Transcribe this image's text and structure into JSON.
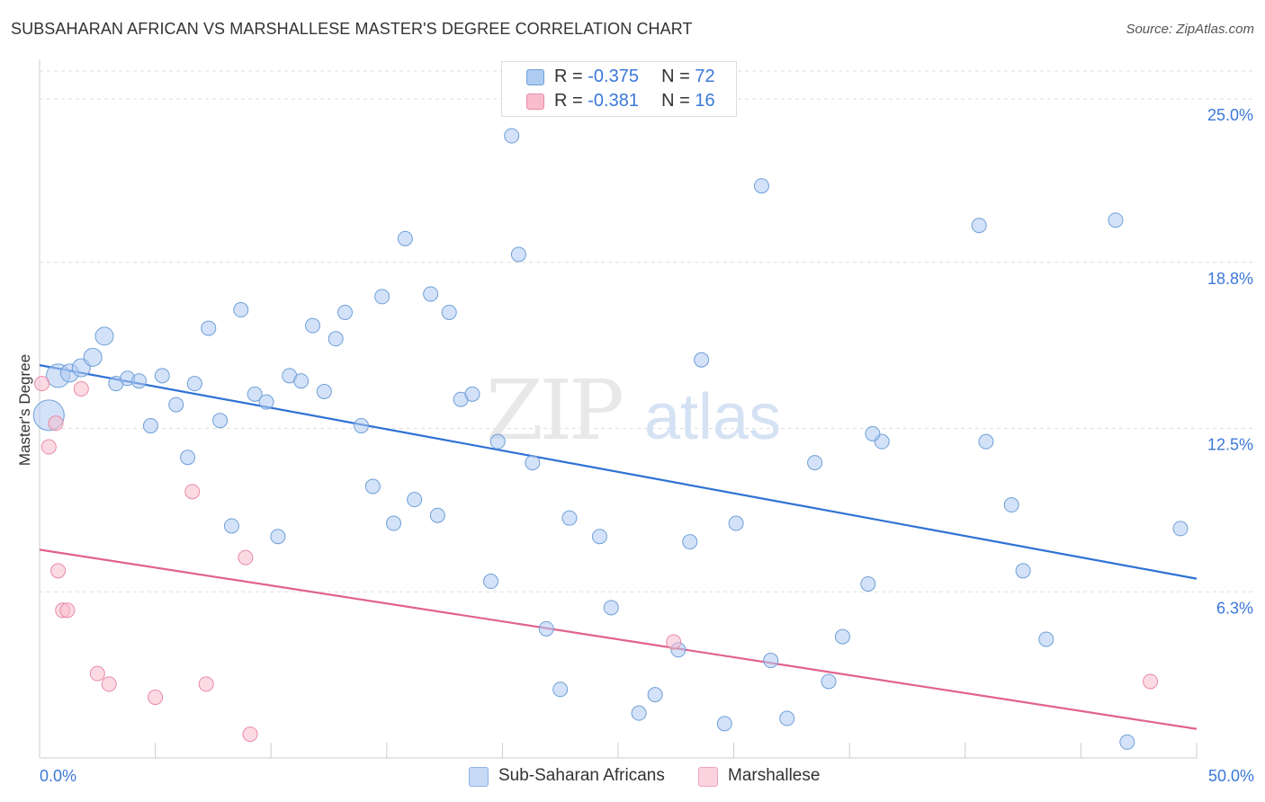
{
  "header": {
    "title": "SUBSAHARAN AFRICAN VS MARSHALLESE MASTER'S DEGREE CORRELATION CHART",
    "source": "Source: ZipAtlas.com"
  },
  "watermark": {
    "zip": "ZIP",
    "atlas": "atlas"
  },
  "stats": [
    {
      "r_label": "R =",
      "r_value": "-0.375",
      "n_label": "N =",
      "n_value": "72"
    },
    {
      "r_label": "R =",
      "r_value": "-0.381",
      "n_label": "N =",
      "n_value": "16"
    }
  ],
  "legend": {
    "items": [
      "Sub-Saharan Africans",
      "Marshallese"
    ]
  },
  "colors": {
    "blue_fill": "#aecbf2",
    "blue_edge": "#6f9fd8",
    "blue_line": "#2f72d4",
    "pink_fill": "#f8bccd",
    "pink_edge": "#e98aa5",
    "pink_line": "#e0628f",
    "tick_label": "#3c78d8",
    "grid": "#dddddd"
  },
  "chart_data": {
    "type": "scatter",
    "title": "SUBSAHARAN AFRICAN VS MARSHALLESE MASTER'S DEGREE CORRELATION CHART",
    "xlabel": "",
    "ylabel": "Master's Degree",
    "xlim": [
      0,
      50
    ],
    "ylim": [
      0,
      26.5
    ],
    "x_tick_labels": [
      "0.0%",
      "50.0%"
    ],
    "y_ticks": [
      6.3,
      12.5,
      18.8,
      25.0
    ],
    "y_tick_labels": [
      "6.3%",
      "12.5%",
      "18.8%",
      "25.0%"
    ],
    "grid": "horizontal dashed",
    "legend_position": "bottom",
    "series": [
      {
        "name": "Sub-Saharan Africans",
        "r": -0.375,
        "n": 72,
        "trend": {
          "x": [
            0,
            50
          ],
          "y": [
            14.9,
            6.8
          ]
        },
        "points": [
          {
            "x": 0.4,
            "y": 13.0,
            "s": 3
          },
          {
            "x": 0.8,
            "y": 14.5,
            "s": 2
          },
          {
            "x": 1.3,
            "y": 14.6,
            "s": 1
          },
          {
            "x": 1.8,
            "y": 14.8,
            "s": 1
          },
          {
            "x": 2.3,
            "y": 15.2,
            "s": 1
          },
          {
            "x": 2.8,
            "y": 16.0,
            "s": 1
          },
          {
            "x": 3.3,
            "y": 14.2
          },
          {
            "x": 3.8,
            "y": 14.4
          },
          {
            "x": 4.3,
            "y": 14.3
          },
          {
            "x": 4.8,
            "y": 12.6
          },
          {
            "x": 5.3,
            "y": 14.5
          },
          {
            "x": 5.9,
            "y": 13.4
          },
          {
            "x": 6.4,
            "y": 11.4
          },
          {
            "x": 6.7,
            "y": 14.2
          },
          {
            "x": 7.3,
            "y": 16.3
          },
          {
            "x": 7.8,
            "y": 12.8
          },
          {
            "x": 8.3,
            "y": 8.8
          },
          {
            "x": 8.7,
            "y": 17.0
          },
          {
            "x": 9.3,
            "y": 13.8
          },
          {
            "x": 9.8,
            "y": 13.5
          },
          {
            "x": 10.3,
            "y": 8.4
          },
          {
            "x": 10.8,
            "y": 14.5
          },
          {
            "x": 11.3,
            "y": 14.3
          },
          {
            "x": 11.8,
            "y": 16.4
          },
          {
            "x": 12.3,
            "y": 13.9
          },
          {
            "x": 12.8,
            "y": 15.9
          },
          {
            "x": 13.2,
            "y": 16.9
          },
          {
            "x": 13.9,
            "y": 12.6
          },
          {
            "x": 14.4,
            "y": 10.3
          },
          {
            "x": 14.8,
            "y": 17.5
          },
          {
            "x": 15.3,
            "y": 8.9
          },
          {
            "x": 15.8,
            "y": 19.7
          },
          {
            "x": 16.2,
            "y": 9.8
          },
          {
            "x": 16.9,
            "y": 17.6
          },
          {
            "x": 17.2,
            "y": 9.2
          },
          {
            "x": 17.7,
            "y": 16.9
          },
          {
            "x": 18.2,
            "y": 13.6
          },
          {
            "x": 18.7,
            "y": 13.8
          },
          {
            "x": 19.5,
            "y": 6.7
          },
          {
            "x": 19.8,
            "y": 12.0
          },
          {
            "x": 20.4,
            "y": 23.6
          },
          {
            "x": 20.7,
            "y": 19.1
          },
          {
            "x": 21.3,
            "y": 11.2
          },
          {
            "x": 21.9,
            "y": 4.9
          },
          {
            "x": 22.5,
            "y": 2.6
          },
          {
            "x": 22.9,
            "y": 9.1
          },
          {
            "x": 24.2,
            "y": 8.4
          },
          {
            "x": 24.7,
            "y": 5.7
          },
          {
            "x": 25.9,
            "y": 1.7
          },
          {
            "x": 26.6,
            "y": 2.4
          },
          {
            "x": 27.6,
            "y": 4.1
          },
          {
            "x": 28.1,
            "y": 8.2
          },
          {
            "x": 28.6,
            "y": 15.1
          },
          {
            "x": 29.6,
            "y": 1.3
          },
          {
            "x": 30.1,
            "y": 8.9
          },
          {
            "x": 31.2,
            "y": 21.7
          },
          {
            "x": 31.6,
            "y": 3.7
          },
          {
            "x": 32.3,
            "y": 1.5
          },
          {
            "x": 33.5,
            "y": 11.2
          },
          {
            "x": 34.1,
            "y": 2.9
          },
          {
            "x": 34.7,
            "y": 4.6
          },
          {
            "x": 35.8,
            "y": 6.6
          },
          {
            "x": 36.4,
            "y": 12.0
          },
          {
            "x": 40.6,
            "y": 20.2
          },
          {
            "x": 40.9,
            "y": 12.0
          },
          {
            "x": 42.0,
            "y": 9.6
          },
          {
            "x": 42.5,
            "y": 7.1
          },
          {
            "x": 43.5,
            "y": 4.5
          },
          {
            "x": 46.5,
            "y": 20.4
          },
          {
            "x": 47.0,
            "y": 0.6
          },
          {
            "x": 49.3,
            "y": 8.7
          },
          {
            "x": 36.0,
            "y": 12.3
          }
        ]
      },
      {
        "name": "Marshallese",
        "r": -0.381,
        "n": 16,
        "trend": {
          "x": [
            0,
            50
          ],
          "y": [
            7.9,
            1.1
          ]
        },
        "points": [
          {
            "x": 0.1,
            "y": 14.2
          },
          {
            "x": 0.4,
            "y": 11.8
          },
          {
            "x": 0.7,
            "y": 12.7
          },
          {
            "x": 0.8,
            "y": 7.1
          },
          {
            "x": 1.0,
            "y": 5.6
          },
          {
            "x": 1.2,
            "y": 5.6
          },
          {
            "x": 1.8,
            "y": 14.0
          },
          {
            "x": 2.5,
            "y": 3.2
          },
          {
            "x": 3.0,
            "y": 2.8
          },
          {
            "x": 5.0,
            "y": 2.3
          },
          {
            "x": 6.6,
            "y": 10.1
          },
          {
            "x": 7.2,
            "y": 2.8
          },
          {
            "x": 8.9,
            "y": 7.6
          },
          {
            "x": 9.1,
            "y": 0.9
          },
          {
            "x": 27.4,
            "y": 4.4
          },
          {
            "x": 48.0,
            "y": 2.9
          }
        ]
      }
    ]
  }
}
